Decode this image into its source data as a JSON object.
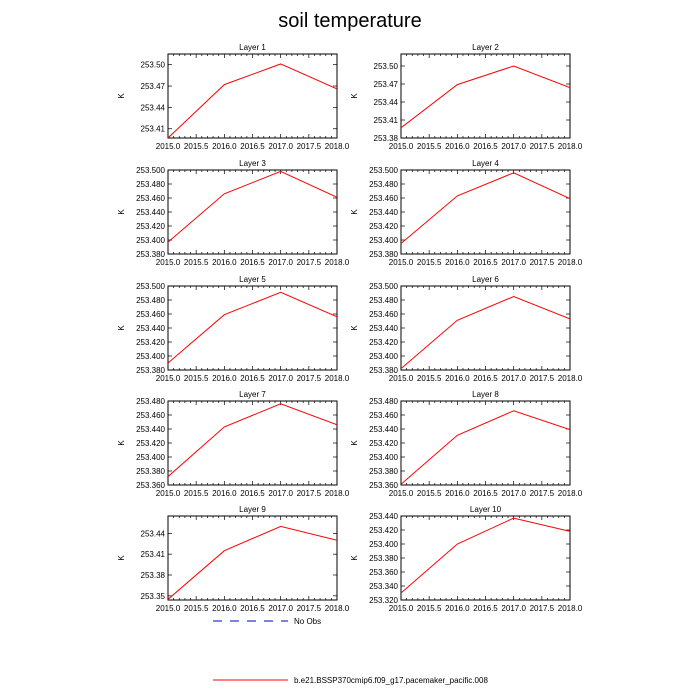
{
  "figure_title": "soil temperature",
  "legend": {
    "obs_label": "No Obs",
    "model_label": "b.e21.BSSP370cmip6.f09_g17.pacemaker_pacific.008",
    "model_color": "#ff0000",
    "obs_color": "#0000cc"
  },
  "chart_data": [
    {
      "type": "line",
      "title": "Layer 1",
      "ylabel": "K",
      "x": [
        2015.0,
        2016.0,
        2017.0,
        2018.0
      ],
      "series": [
        {
          "name": "b.e21.BSSP370cmip6.f09_g17.pacemaker_pacific.008",
          "values": [
            253.397,
            253.472,
            253.501,
            253.466
          ]
        }
      ],
      "xlim": [
        2015.0,
        2018.0
      ],
      "ylim": [
        253.397,
        253.515
      ],
      "xticks": [
        "2015.0",
        "2015.5",
        "2016.0",
        "2016.5",
        "2017.0",
        "2017.5",
        "2018.0"
      ],
      "yticks": [
        "253.41",
        "253.44",
        "253.47",
        "253.50"
      ],
      "ytick_values": [
        253.41,
        253.44,
        253.47,
        253.5
      ]
    },
    {
      "type": "line",
      "title": "Layer 2",
      "ylabel": "K",
      "x": [
        2015.0,
        2016.0,
        2017.0,
        2018.0
      ],
      "series": [
        {
          "name": "b.e21.BSSP370cmip6.f09_g17.pacemaker_pacific.008",
          "values": [
            253.397,
            253.469,
            253.5,
            253.464
          ]
        }
      ],
      "xlim": [
        2015.0,
        2018.0
      ],
      "ylim": [
        253.38,
        253.52
      ],
      "xticks": [
        "2015.0",
        "2015.5",
        "2016.0",
        "2016.5",
        "2017.0",
        "2017.5",
        "2018.0"
      ],
      "yticks": [
        "253.38",
        "253.41",
        "253.44",
        "253.47",
        "253.50"
      ],
      "ytick_values": [
        253.38,
        253.41,
        253.44,
        253.47,
        253.5
      ]
    },
    {
      "type": "line",
      "title": "Layer 3",
      "ylabel": "K",
      "x": [
        2015.0,
        2016.0,
        2017.0,
        2018.0
      ],
      "series": [
        {
          "name": "b.e21.BSSP370cmip6.f09_g17.pacemaker_pacific.008",
          "values": [
            253.397,
            253.466,
            253.498,
            253.461
          ]
        }
      ],
      "xlim": [
        2015.0,
        2018.0
      ],
      "ylim": [
        253.38,
        253.5
      ],
      "xticks": [
        "2015.0",
        "2015.5",
        "2016.0",
        "2016.5",
        "2017.0",
        "2017.5",
        "2018.0"
      ],
      "yticks": [
        "253.380",
        "253.400",
        "253.420",
        "253.440",
        "253.460",
        "253.480",
        "253.500"
      ],
      "ytick_values": [
        253.38,
        253.4,
        253.42,
        253.44,
        253.46,
        253.48,
        253.5
      ]
    },
    {
      "type": "line",
      "title": "Layer 4",
      "ylabel": "K",
      "x": [
        2015.0,
        2016.0,
        2017.0,
        2018.0
      ],
      "series": [
        {
          "name": "b.e21.BSSP370cmip6.f09_g17.pacemaker_pacific.008",
          "values": [
            253.395,
            253.463,
            253.496,
            253.459
          ]
        }
      ],
      "xlim": [
        2015.0,
        2018.0
      ],
      "ylim": [
        253.38,
        253.5
      ],
      "xticks": [
        "2015.0",
        "2015.5",
        "2016.0",
        "2016.5",
        "2017.0",
        "2017.5",
        "2018.0"
      ],
      "yticks": [
        "253.380",
        "253.400",
        "253.420",
        "253.440",
        "253.460",
        "253.480",
        "253.500"
      ],
      "ytick_values": [
        253.38,
        253.4,
        253.42,
        253.44,
        253.46,
        253.48,
        253.5
      ]
    },
    {
      "type": "line",
      "title": "Layer 5",
      "ylabel": "K",
      "x": [
        2015.0,
        2016.0,
        2017.0,
        2018.0
      ],
      "series": [
        {
          "name": "b.e21.BSSP370cmip6.f09_g17.pacemaker_pacific.008",
          "values": [
            253.39,
            253.459,
            253.491,
            253.456
          ]
        }
      ],
      "xlim": [
        2015.0,
        2018.0
      ],
      "ylim": [
        253.38,
        253.5
      ],
      "xticks": [
        "2015.0",
        "2015.5",
        "2016.0",
        "2016.5",
        "2017.0",
        "2017.5",
        "2018.0"
      ],
      "yticks": [
        "253.380",
        "253.400",
        "253.420",
        "253.440",
        "253.460",
        "253.480",
        "253.500"
      ],
      "ytick_values": [
        253.38,
        253.4,
        253.42,
        253.44,
        253.46,
        253.48,
        253.5
      ]
    },
    {
      "type": "line",
      "title": "Layer 6",
      "ylabel": "K",
      "x": [
        2015.0,
        2016.0,
        2017.0,
        2018.0
      ],
      "series": [
        {
          "name": "b.e21.BSSP370cmip6.f09_g17.pacemaker_pacific.008",
          "values": [
            253.382,
            253.451,
            253.485,
            253.453
          ]
        }
      ],
      "xlim": [
        2015.0,
        2018.0
      ],
      "ylim": [
        253.38,
        253.5
      ],
      "xticks": [
        "2015.0",
        "2015.5",
        "2016.0",
        "2016.5",
        "2017.0",
        "2017.5",
        "2018.0"
      ],
      "yticks": [
        "253.380",
        "253.400",
        "253.420",
        "253.440",
        "253.460",
        "253.480",
        "253.500"
      ],
      "ytick_values": [
        253.38,
        253.4,
        253.42,
        253.44,
        253.46,
        253.48,
        253.5
      ]
    },
    {
      "type": "line",
      "title": "Layer 7",
      "ylabel": "K",
      "x": [
        2015.0,
        2016.0,
        2017.0,
        2018.0
      ],
      "series": [
        {
          "name": "b.e21.BSSP370cmip6.f09_g17.pacemaker_pacific.008",
          "values": [
            253.372,
            253.443,
            253.476,
            253.446
          ]
        }
      ],
      "xlim": [
        2015.0,
        2018.0
      ],
      "ylim": [
        253.36,
        253.48
      ],
      "xticks": [
        "2015.0",
        "2015.5",
        "2016.0",
        "2016.5",
        "2017.0",
        "2017.5",
        "2018.0"
      ],
      "yticks": [
        "253.360",
        "253.380",
        "253.400",
        "253.420",
        "253.440",
        "253.460",
        "253.480"
      ],
      "ytick_values": [
        253.36,
        253.38,
        253.4,
        253.42,
        253.44,
        253.46,
        253.48
      ]
    },
    {
      "type": "line",
      "title": "Layer 8",
      "ylabel": "K",
      "x": [
        2015.0,
        2016.0,
        2017.0,
        2018.0
      ],
      "series": [
        {
          "name": "b.e21.BSSP370cmip6.f09_g17.pacemaker_pacific.008",
          "values": [
            253.361,
            253.431,
            253.466,
            253.439
          ]
        }
      ],
      "xlim": [
        2015.0,
        2018.0
      ],
      "ylim": [
        253.36,
        253.48
      ],
      "xticks": [
        "2015.0",
        "2015.5",
        "2016.0",
        "2016.5",
        "2017.0",
        "2017.5",
        "2018.0"
      ],
      "yticks": [
        "253.360",
        "253.380",
        "253.400",
        "253.420",
        "253.440",
        "253.460",
        "253.480"
      ],
      "ytick_values": [
        253.36,
        253.38,
        253.4,
        253.42,
        253.44,
        253.46,
        253.48
      ]
    },
    {
      "type": "line",
      "title": "Layer 9",
      "ylabel": "K",
      "x": [
        2015.0,
        2016.0,
        2017.0,
        2018.0
      ],
      "series": [
        {
          "name": "b.e21.BSSP370cmip6.f09_g17.pacemaker_pacific.008",
          "values": [
            253.345,
            253.415,
            253.45,
            253.43
          ]
        }
      ],
      "xlim": [
        2015.0,
        2018.0
      ],
      "ylim": [
        253.344,
        253.465
      ],
      "xticks": [
        "2015.0",
        "2015.5",
        "2016.0",
        "2016.5",
        "2017.0",
        "2017.5",
        "2018.0"
      ],
      "yticks": [
        "253.35",
        "253.38",
        "253.41",
        "253.44"
      ],
      "ytick_values": [
        253.35,
        253.38,
        253.41,
        253.44
      ]
    },
    {
      "type": "line",
      "title": "Layer 10",
      "ylabel": "K",
      "x": [
        2015.0,
        2016.0,
        2017.0,
        2018.0
      ],
      "series": [
        {
          "name": "b.e21.BSSP370cmip6.f09_g17.pacemaker_pacific.008",
          "values": [
            253.33,
            253.4,
            253.437,
            253.418
          ]
        }
      ],
      "xlim": [
        2015.0,
        2018.0
      ],
      "ylim": [
        253.32,
        253.44
      ],
      "xticks": [
        "2015.0",
        "2015.5",
        "2016.0",
        "2016.5",
        "2017.0",
        "2017.5",
        "2018.0"
      ],
      "yticks": [
        "253.320",
        "253.340",
        "253.360",
        "253.380",
        "253.400",
        "253.420",
        "253.440"
      ],
      "ytick_values": [
        253.32,
        253.34,
        253.36,
        253.38,
        253.4,
        253.42,
        253.44
      ]
    }
  ]
}
